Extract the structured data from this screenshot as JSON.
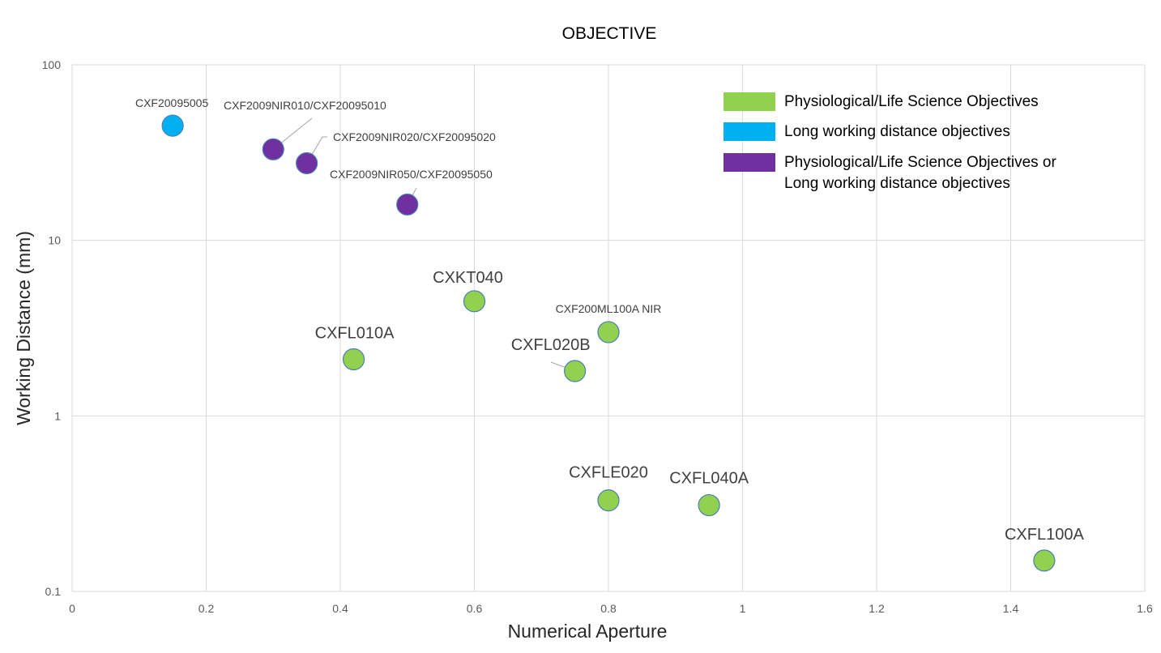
{
  "chart_data": {
    "type": "scatter",
    "title": "OBJECTIVE",
    "xlabel": "Numerical Aperture",
    "ylabel": "Working Distance (mm)",
    "xlim": [
      0,
      1.6
    ],
    "ylim": [
      0.1,
      100
    ],
    "yscale": "log",
    "grid": true,
    "legend_position": "top-right",
    "x_ticks": [
      "0",
      "0.2",
      "0.4",
      "0.6",
      "0.8",
      "1",
      "1.2",
      "1.4",
      "1.6"
    ],
    "y_ticks": [
      "0.1",
      "1",
      "10",
      "100"
    ],
    "series": [
      {
        "name": "Physiological/Life Science Objectives",
        "color": "#92D050",
        "points": [
          {
            "label": "CXKT040",
            "x": 0.6,
            "y": 4.5
          },
          {
            "label": "CXF200ML100A NIR",
            "x": 0.8,
            "y": 3.0
          },
          {
            "label": "CXFL010A",
            "x": 0.42,
            "y": 2.1
          },
          {
            "label": "CXFL020B",
            "x": 0.75,
            "y": 1.8
          },
          {
            "label": "CXFLE020",
            "x": 0.8,
            "y": 0.33
          },
          {
            "label": "CXFL040A",
            "x": 0.95,
            "y": 0.31
          },
          {
            "label": "CXFL100A",
            "x": 1.45,
            "y": 0.15
          }
        ]
      },
      {
        "name": "Long working distance objectives",
        "color": "#00B0F0",
        "points": [
          {
            "label": "CXF20095005",
            "x": 0.15,
            "y": 45
          }
        ]
      },
      {
        "name": "Physiological/Life Science Objectives or\nLong working distance objectives",
        "color": "#7030A0",
        "points": [
          {
            "label": "CXF2009NIR010/CXF20095010",
            "x": 0.3,
            "y": 33
          },
          {
            "label": "CXF2009NIR020/CXF20095020",
            "x": 0.35,
            "y": 27.5
          },
          {
            "label": "CXF2009NIR050/CXF20095050",
            "x": 0.5,
            "y": 16
          }
        ]
      }
    ]
  }
}
